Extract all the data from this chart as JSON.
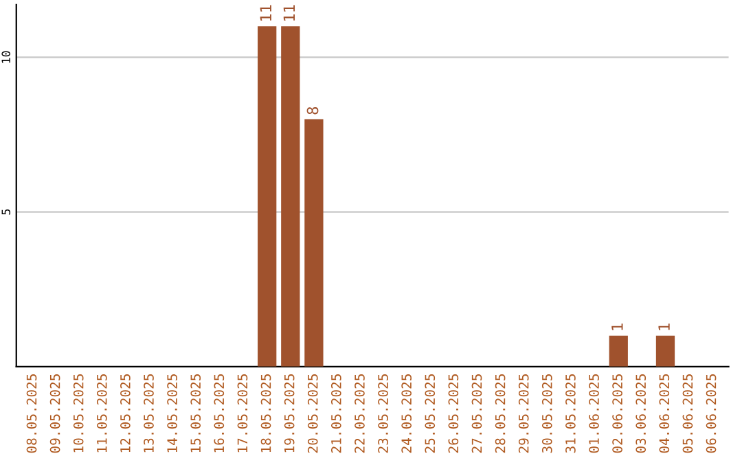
{
  "chart_data": {
    "type": "bar",
    "categories": [
      "08.05.2025",
      "09.05.2025",
      "10.05.2025",
      "11.05.2025",
      "12.05.2025",
      "13.05.2025",
      "14.05.2025",
      "15.05.2025",
      "16.05.2025",
      "17.05.2025",
      "18.05.2025",
      "19.05.2025",
      "20.05.2025",
      "21.05.2025",
      "22.05.2025",
      "23.05.2025",
      "24.05.2025",
      "25.05.2025",
      "26.05.2025",
      "27.05.2025",
      "28.05.2025",
      "29.05.2025",
      "30.05.2025",
      "31.05.2025",
      "01.06.2025",
      "02.06.2025",
      "03.06.2025",
      "04.06.2025",
      "05.06.2025",
      "06.06.2025"
    ],
    "values": [
      0,
      0,
      0,
      0,
      0,
      0,
      0,
      0,
      0,
      0,
      11,
      11,
      8,
      0,
      0,
      0,
      0,
      0,
      0,
      0,
      0,
      0,
      0,
      0,
      0,
      1,
      0,
      1,
      0,
      0
    ],
    "value_labels": [
      null,
      null,
      null,
      null,
      null,
      null,
      null,
      null,
      null,
      null,
      "11",
      "11",
      "8",
      null,
      null,
      null,
      null,
      null,
      null,
      null,
      null,
      null,
      null,
      null,
      null,
      "1",
      null,
      "1",
      null,
      null
    ],
    "color": "#a0522d",
    "ylim": [
      0,
      11.7
    ],
    "yticks": [
      5,
      10
    ],
    "grid": "y"
  }
}
